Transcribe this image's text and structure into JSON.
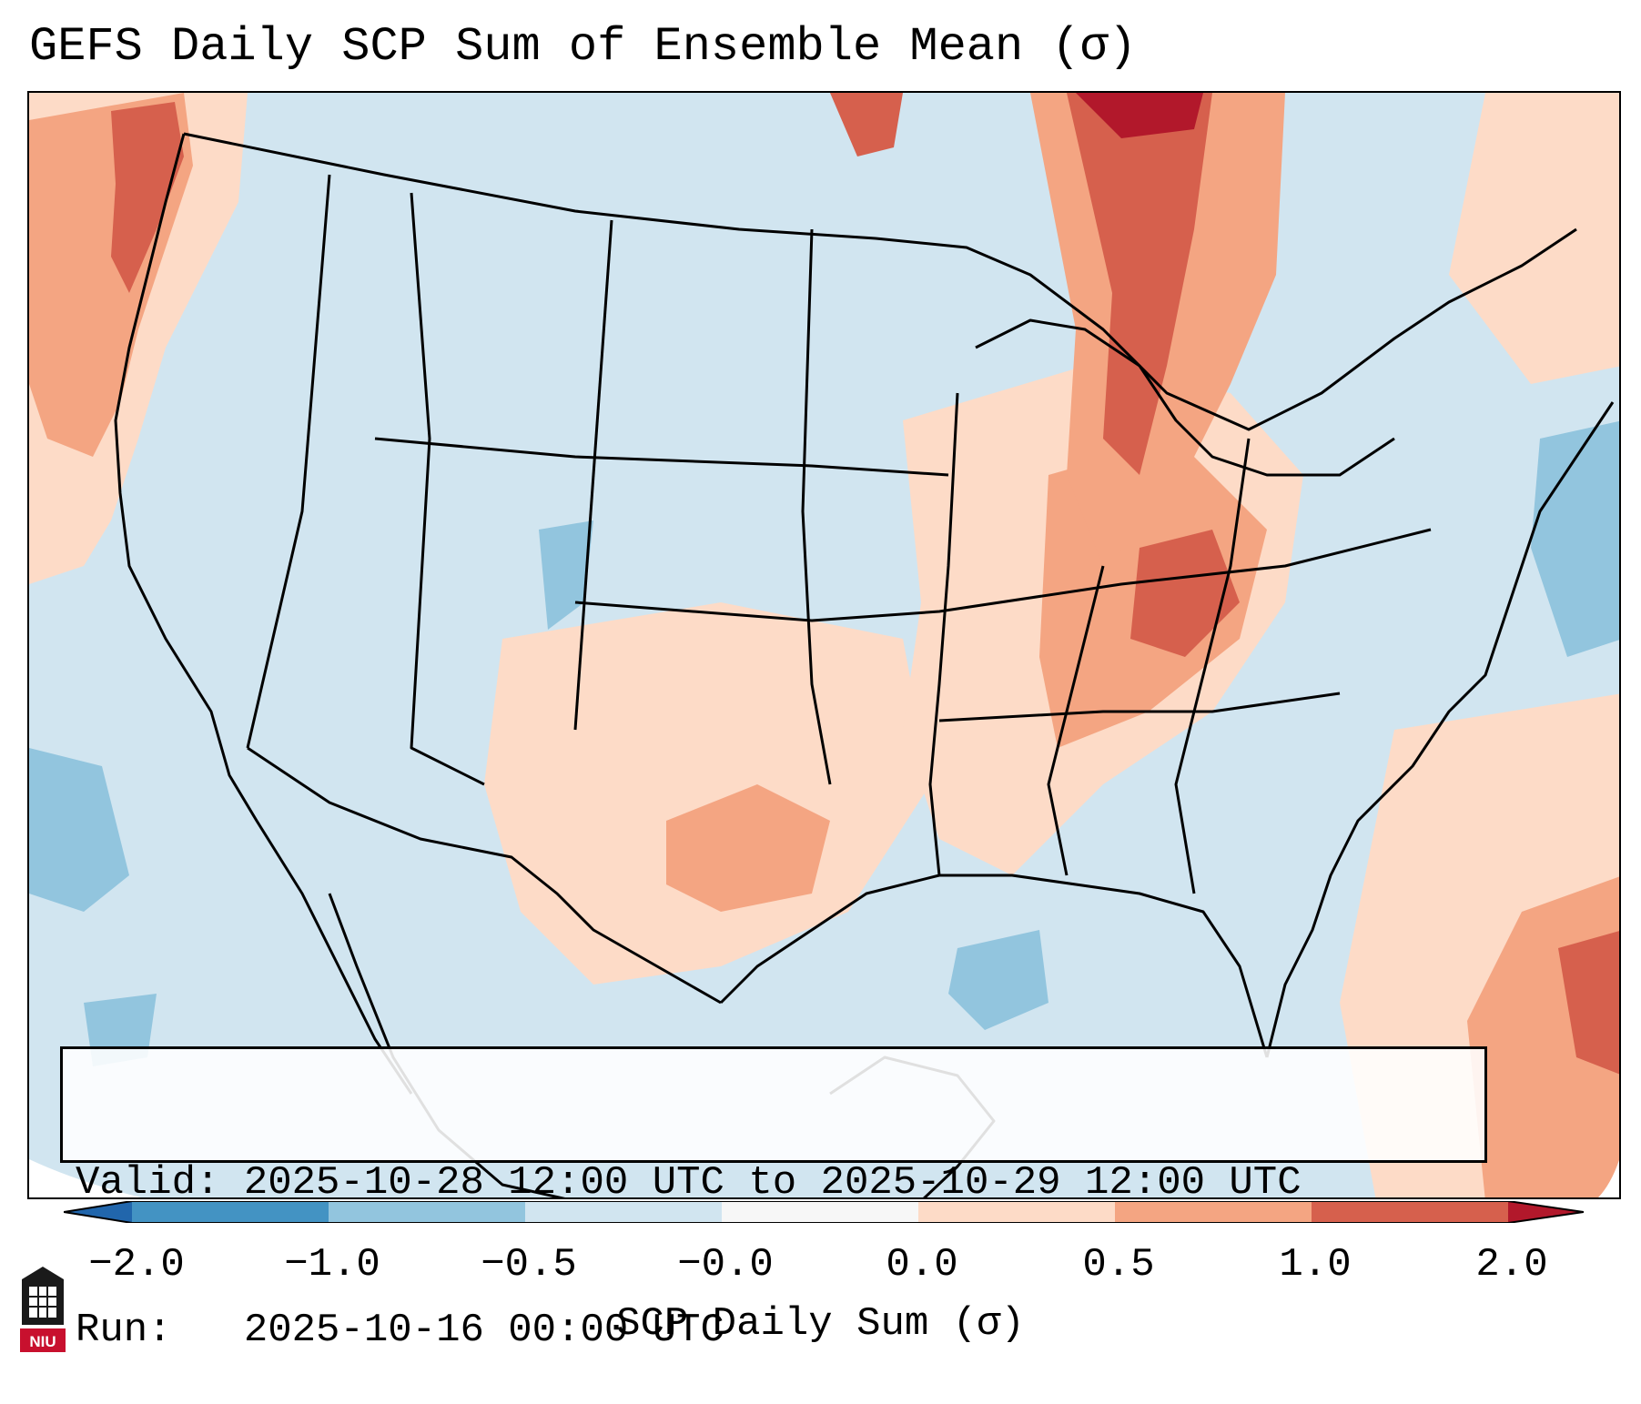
{
  "title": "GEFS Daily SCP Sum of Ensemble Mean (σ)",
  "info_box": {
    "valid_line": "Valid: 2025-10-28 12:00 UTC to 2025-10-29 12:00 UTC",
    "run_line": "Run:   2025-10-16 00:00 UTC"
  },
  "colorbar": {
    "label": "SCP Daily Sum (σ)",
    "ticks": [
      "−2.0",
      "−1.0",
      "−0.5",
      "−0.0",
      "0.0",
      "0.5",
      "1.0",
      "2.0"
    ],
    "bins": [
      {
        "color": "#2166ac"
      },
      {
        "color": "#4393c3"
      },
      {
        "color": "#92c5de"
      },
      {
        "color": "#d1e5f0"
      },
      {
        "color": "#f7f7f7"
      },
      {
        "color": "#fddbc7"
      },
      {
        "color": "#f4a582"
      },
      {
        "color": "#d6604d"
      },
      {
        "color": "#b2182b"
      }
    ]
  },
  "map": {
    "background_color": "#d1e5f0",
    "outline_color": "#000000"
  },
  "logo": {
    "text": "NIU",
    "color": "#c8102e"
  }
}
